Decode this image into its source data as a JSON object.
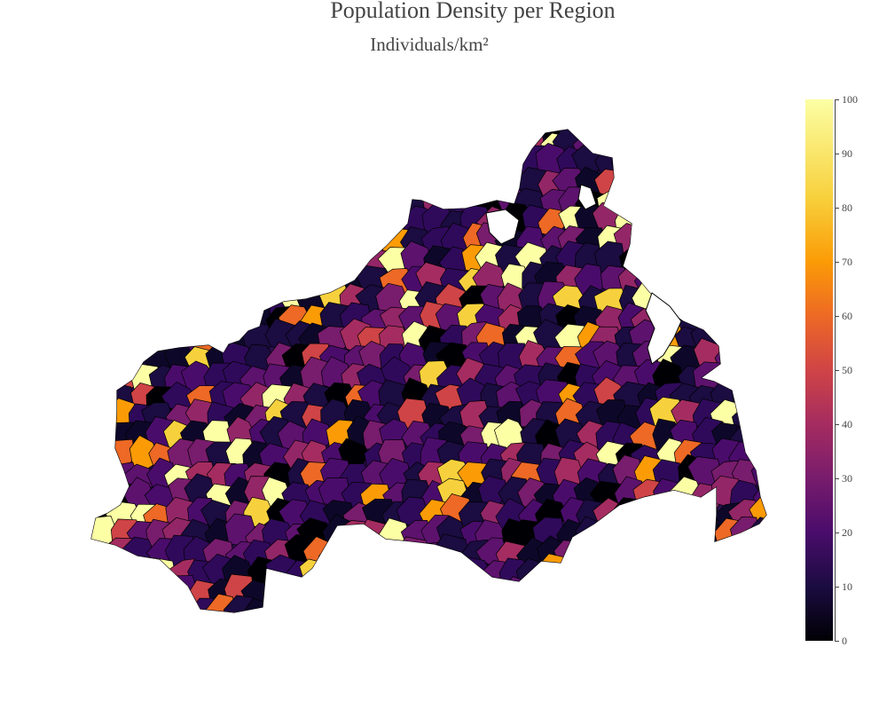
{
  "title": "Population Density per Region",
  "subtitle": "Individuals/km²",
  "colorbar": {
    "colorscale": "inferno",
    "min": 0,
    "max": 100,
    "ticks": [
      "100",
      "90",
      "80",
      "70",
      "60",
      "50",
      "40",
      "30",
      "20",
      "10",
      "0"
    ]
  },
  "map": {
    "region_border_color": "#000000",
    "background": "#ffffff"
  }
}
